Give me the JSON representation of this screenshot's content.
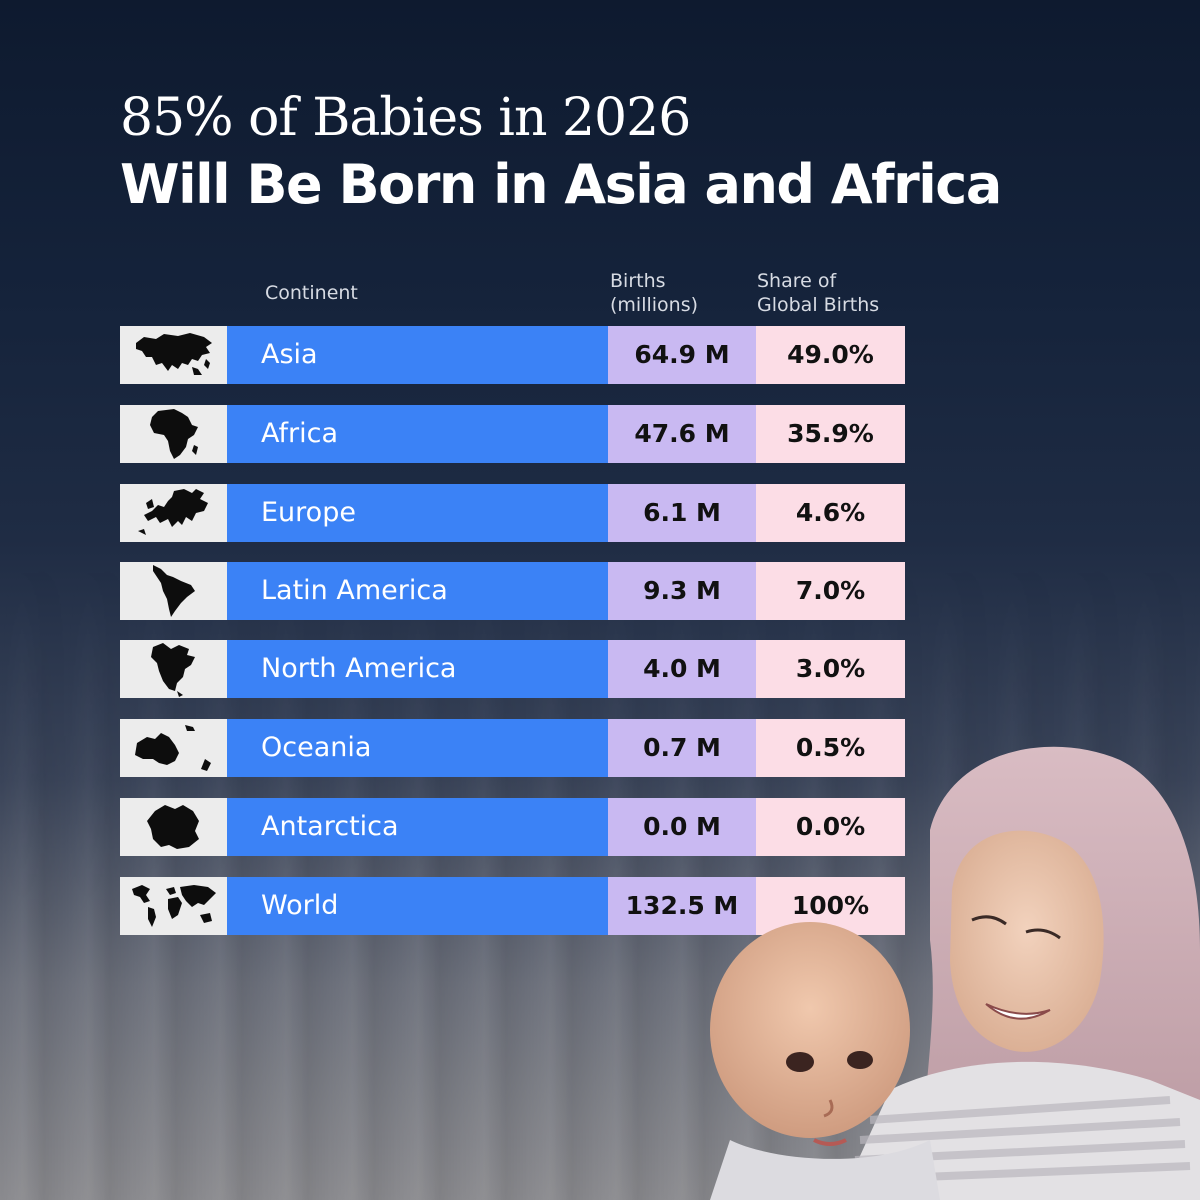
{
  "title": {
    "line1": "85% of Babies in 2026",
    "line2": "Will Be Born in Asia and Africa"
  },
  "table": {
    "headers": {
      "continent": "Continent",
      "births_line1": "Births",
      "births_line2": "(millions)",
      "share_line1": "Share of",
      "share_line2": "Global Births"
    },
    "rows": [
      {
        "map_icon": "asia-map-icon",
        "continent": "Asia",
        "births": "64.9 M",
        "share": "49.0%"
      },
      {
        "map_icon": "africa-map-icon",
        "continent": "Africa",
        "births": "47.6 M",
        "share": "35.9%"
      },
      {
        "map_icon": "europe-map-icon",
        "continent": "Europe",
        "births": "6.1 M",
        "share": "4.6%"
      },
      {
        "map_icon": "latin-america-map-icon",
        "continent": "Latin America",
        "births": "9.3 M",
        "share": "7.0%"
      },
      {
        "map_icon": "north-america-map-icon",
        "continent": "North America",
        "births": "4.0 M",
        "share": "3.0%"
      },
      {
        "map_icon": "oceania-map-icon",
        "continent": "Oceania",
        "births": "0.7 M",
        "share": "0.5%"
      },
      {
        "map_icon": "antarctica-map-icon",
        "continent": "Antarctica",
        "births": "0.0 M",
        "share": "0.0%"
      },
      {
        "map_icon": "world-map-icon",
        "continent": "World",
        "births": "132.5 M",
        "share": "100%"
      }
    ]
  },
  "colors": {
    "name_column": "#3b82f6",
    "births_column": "#c9b9f2",
    "share_column": "#fcdde6",
    "map_column": "#ececec"
  }
}
